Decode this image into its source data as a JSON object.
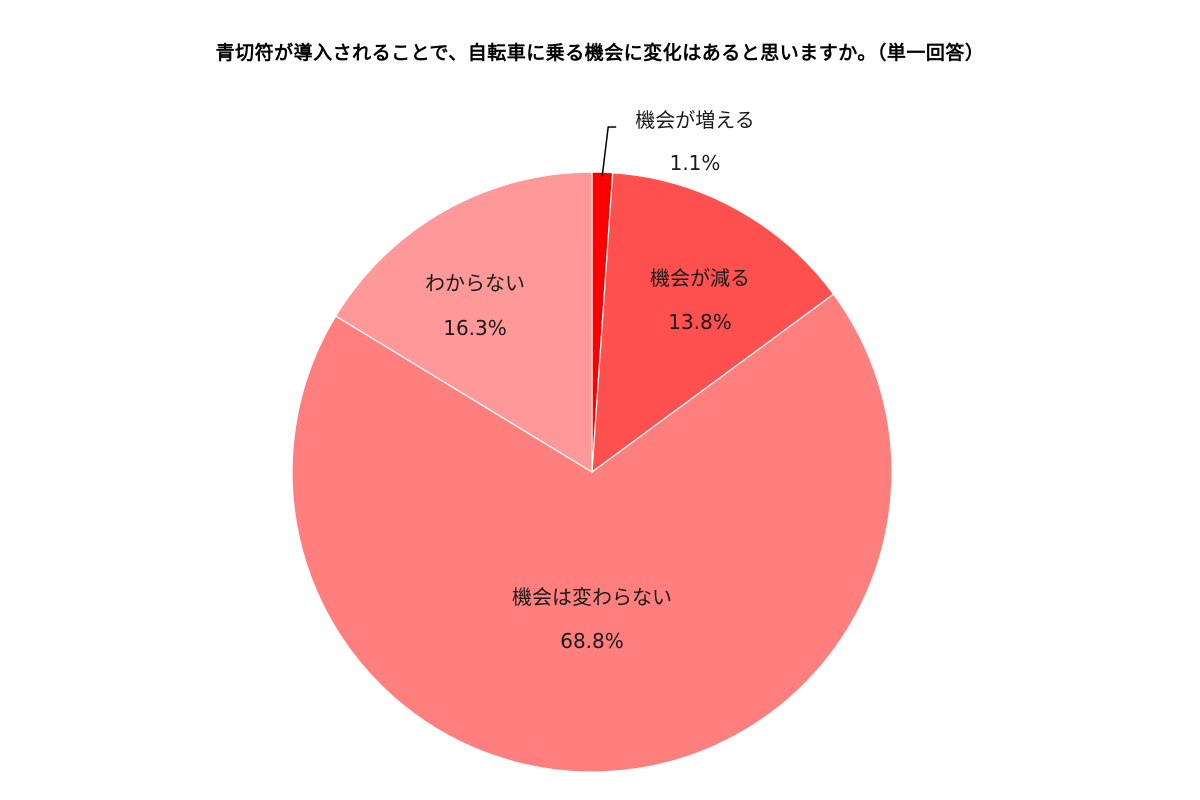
{
  "chart_data": {
    "type": "pie",
    "title": "青切符が導入されることで、自転車に乗る機会に変化はあると思いますか。（単一回答）",
    "slices": [
      {
        "label": "機会が増える",
        "value": 1.1,
        "display": "1.1%",
        "color": "#ff0000"
      },
      {
        "label": "機会が減る",
        "value": 13.8,
        "display": "13.8%",
        "color": "#ff5050"
      },
      {
        "label": "機会は変わらない",
        "value": 68.8,
        "display": "68.8%",
        "color": "#ff7f7f"
      },
      {
        "label": "わからない",
        "value": 16.3,
        "display": "16.3%",
        "color": "#ff9999"
      }
    ],
    "start": "12 o'clock",
    "direction": "clockwise",
    "legend": "none"
  }
}
